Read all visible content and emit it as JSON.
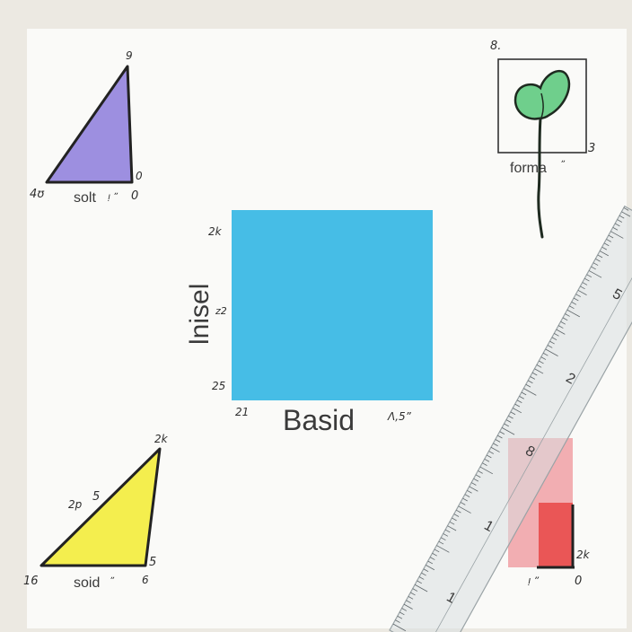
{
  "colors": {
    "paper": "#fafaf8",
    "background": "#ece9e2",
    "purple_triangle": "#9d8fe0",
    "blue_square": "#46bde6",
    "yellow_triangle": "#f4ee4e",
    "leaf": "#6fcf8c",
    "pink_rect": "#f2aeb2",
    "red_rect": "#ea5656",
    "ruler": "#d9dee0"
  },
  "top_left_triangle": {
    "label": "solt",
    "marks": [
      "9",
      "4ʊ",
      "ᴉ ˮ",
      "0",
      "0"
    ]
  },
  "top_right_leaf": {
    "label": "forma",
    "marks": [
      "8.",
      "3",
      "ˮ"
    ]
  },
  "center_square": {
    "label_bottom": "Basid",
    "label_side": "lnisel",
    "marks": [
      "2k",
      "z2",
      "25",
      "21",
      "Λ,5ˮ"
    ]
  },
  "bottom_left_triangle": {
    "label": "soid",
    "marks": [
      "2k",
      "2p",
      "5",
      "16",
      "5",
      "6",
      "ˮ"
    ]
  },
  "bottom_right_rect": {
    "marks": [
      "2k",
      "0",
      "ᴉ ˮ"
    ]
  },
  "ruler": {
    "numbers": [
      "5",
      "2",
      "8",
      "1",
      "1"
    ]
  }
}
